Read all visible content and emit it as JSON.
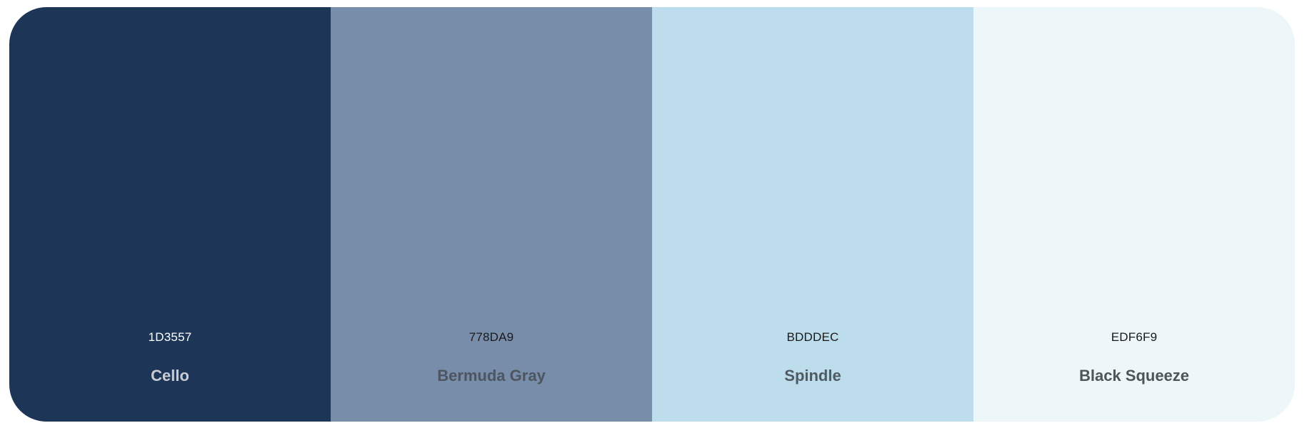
{
  "palette": {
    "swatches": [
      {
        "hex": "1D3557",
        "name": "Cello",
        "color": "#1D3557",
        "hex_text_color": "#FFFFFF",
        "name_text_color": "#C9CDD3"
      },
      {
        "hex": "778DA9",
        "name": "Bermuda Gray",
        "color": "#778DA9",
        "hex_text_color": "#1A1A1A",
        "name_text_color": "#4D5560"
      },
      {
        "hex": "BDDDEC",
        "name": "Spindle",
        "color": "#BDDDEC",
        "hex_text_color": "#1A1A1A",
        "name_text_color": "#505A62"
      },
      {
        "hex": "EDF6F9",
        "name": "Black Squeeze",
        "color": "#EDF6F9",
        "hex_text_color": "#1A1A1A",
        "name_text_color": "#4F5458"
      }
    ]
  }
}
